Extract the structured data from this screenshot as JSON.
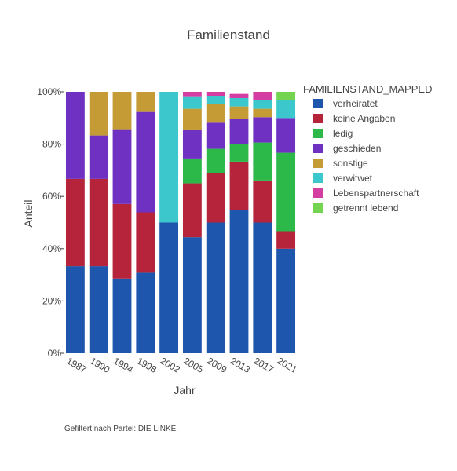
{
  "chart_data": {
    "type": "bar",
    "stacked": true,
    "title": "Familienstand",
    "xlabel": "Jahr",
    "ylabel": "Anteil",
    "ylim": [
      0,
      100
    ],
    "y_tick_labels": [
      "0%",
      "20%",
      "40%",
      "60%",
      "80%",
      "100%"
    ],
    "y_ticks": [
      0,
      20,
      40,
      60,
      80,
      100
    ],
    "categories": [
      "1987",
      "1990",
      "1994",
      "1998",
      "2002",
      "2005",
      "2009",
      "2013",
      "2017",
      "2021"
    ],
    "legend_title": "FAMILIENSTAND_MAPPED",
    "legend_position": "right",
    "series": [
      {
        "name": "verheiratet",
        "color": "#1f56ad",
        "values": [
          33.3,
          33.3,
          28.6,
          30.8,
          50.0,
          44.4,
          50.0,
          54.8,
          50.0,
          40.0
        ]
      },
      {
        "name": "keine Angaben",
        "color": "#b5243b",
        "values": [
          33.4,
          33.4,
          28.5,
          23.1,
          0,
          20.6,
          18.8,
          18.5,
          16.1,
          6.7
        ]
      },
      {
        "name": "ledig",
        "color": "#2db84a",
        "values": [
          0,
          0,
          0,
          0,
          0,
          9.5,
          9.4,
          6.6,
          14.5,
          30.0
        ]
      },
      {
        "name": "geschieden",
        "color": "#6e31c1",
        "values": [
          33.3,
          16.6,
          28.6,
          38.4,
          0,
          11.1,
          10.0,
          9.7,
          9.7,
          13.3
        ]
      },
      {
        "name": "sonstige",
        "color": "#c49b35",
        "values": [
          0,
          16.7,
          14.3,
          7.7,
          0,
          7.9,
          7.2,
          4.8,
          3.2,
          0
        ]
      },
      {
        "name": "verwitwet",
        "color": "#3cc7cc",
        "values": [
          0,
          0,
          0,
          0,
          50.0,
          4.8,
          3.1,
          3.2,
          3.2,
          6.7
        ]
      },
      {
        "name": "Lebenspartnerschaft",
        "color": "#d43ea3",
        "values": [
          0,
          0,
          0,
          0,
          0,
          1.7,
          1.5,
          1.6,
          3.3,
          0
        ]
      },
      {
        "name": "getrennt lebend",
        "color": "#74d34f",
        "values": [
          0,
          0,
          0,
          0,
          0,
          0,
          0,
          0,
          0,
          3.3
        ]
      }
    ]
  },
  "note": "Gefiltert nach Partei: DIE LINKE."
}
